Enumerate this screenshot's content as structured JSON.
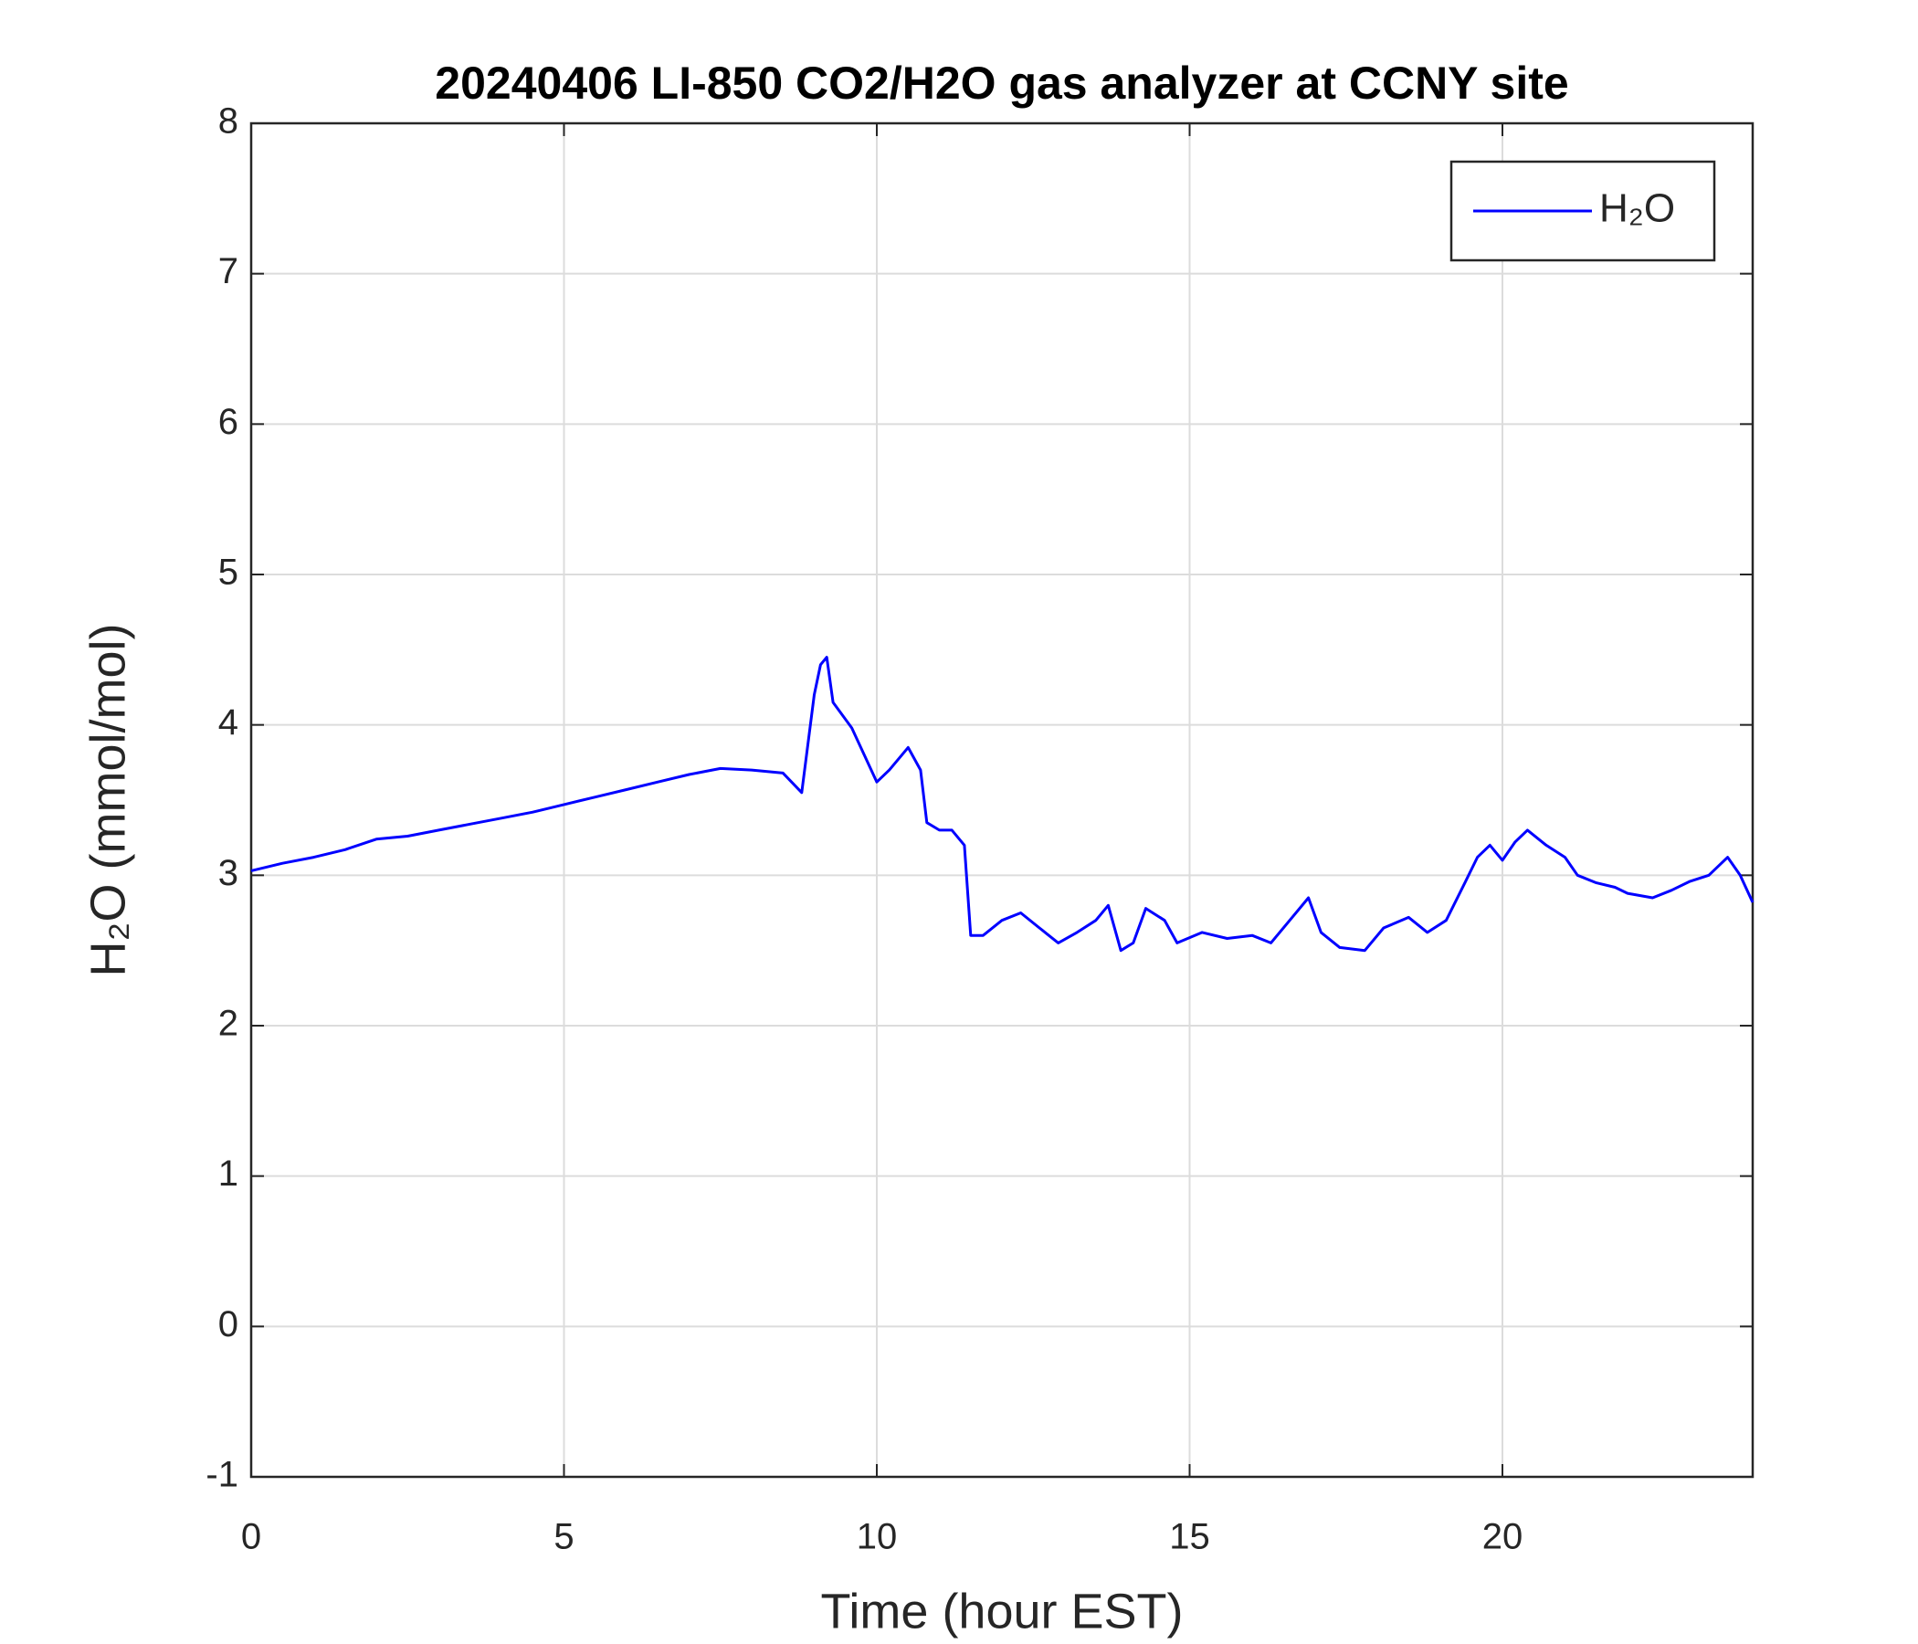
{
  "chart_data": {
    "type": "line",
    "title": "20240406 LI-850 CO2/H2O gas analyzer at CCNY site",
    "xlabel": "Time (hour EST)",
    "ylabel": "H₂O (mmol/mol)",
    "x": [
      0,
      0.5,
      1,
      1.5,
      2,
      2.5,
      3,
      3.5,
      4,
      4.5,
      5,
      5.5,
      6,
      6.5,
      7,
      7.5,
      8,
      8.5,
      8.8,
      9.0,
      9.1,
      9.2,
      9.3,
      9.6,
      9.8,
      10.0,
      10.2,
      10.5,
      10.7,
      10.8,
      11,
      11.2,
      11.4,
      11.5,
      11.7,
      12,
      12.3,
      12.6,
      12.9,
      13.2,
      13.5,
      13.7,
      13.9,
      14.1,
      14.3,
      14.6,
      14.8,
      15.2,
      15.6,
      16,
      16.3,
      16.6,
      16.9,
      17.1,
      17.4,
      17.8,
      18.1,
      18.5,
      18.8,
      19.1,
      19.4,
      19.6,
      19.8,
      20,
      20.2,
      20.4,
      20.7,
      21,
      21.2,
      21.5,
      21.8,
      22,
      22.4,
      22.7,
      23,
      23.3,
      23.6,
      23.8,
      24
    ],
    "series": [
      {
        "name": "H₂O",
        "color": "#0000ff",
        "values": [
          3.03,
          3.08,
          3.12,
          3.17,
          3.24,
          3.26,
          3.3,
          3.34,
          3.38,
          3.42,
          3.47,
          3.52,
          3.57,
          3.62,
          3.67,
          3.71,
          3.7,
          3.68,
          3.55,
          4.2,
          4.4,
          4.45,
          4.15,
          3.98,
          3.8,
          3.62,
          3.7,
          3.85,
          3.7,
          3.35,
          3.3,
          3.3,
          3.2,
          2.6,
          2.6,
          2.7,
          2.75,
          2.65,
          2.55,
          2.62,
          2.7,
          2.8,
          2.5,
          2.55,
          2.78,
          2.7,
          2.55,
          2.62,
          2.58,
          2.6,
          2.55,
          2.7,
          2.85,
          2.62,
          2.52,
          2.5,
          2.65,
          2.72,
          2.62,
          2.7,
          2.95,
          3.12,
          3.2,
          3.1,
          3.22,
          3.3,
          3.2,
          3.12,
          3.0,
          2.95,
          2.92,
          2.88,
          2.85,
          2.9,
          2.96,
          3.0,
          3.12,
          3.0,
          2.82
        ]
      }
    ],
    "xlim": [
      0,
      24
    ],
    "xticks": [
      0,
      5,
      10,
      15,
      20
    ],
    "ylim": [
      -1,
      8
    ],
    "yticks": [
      -1,
      0,
      1,
      2,
      3,
      4,
      5,
      6,
      7,
      8
    ],
    "grid": true,
    "legend": "northeast"
  }
}
